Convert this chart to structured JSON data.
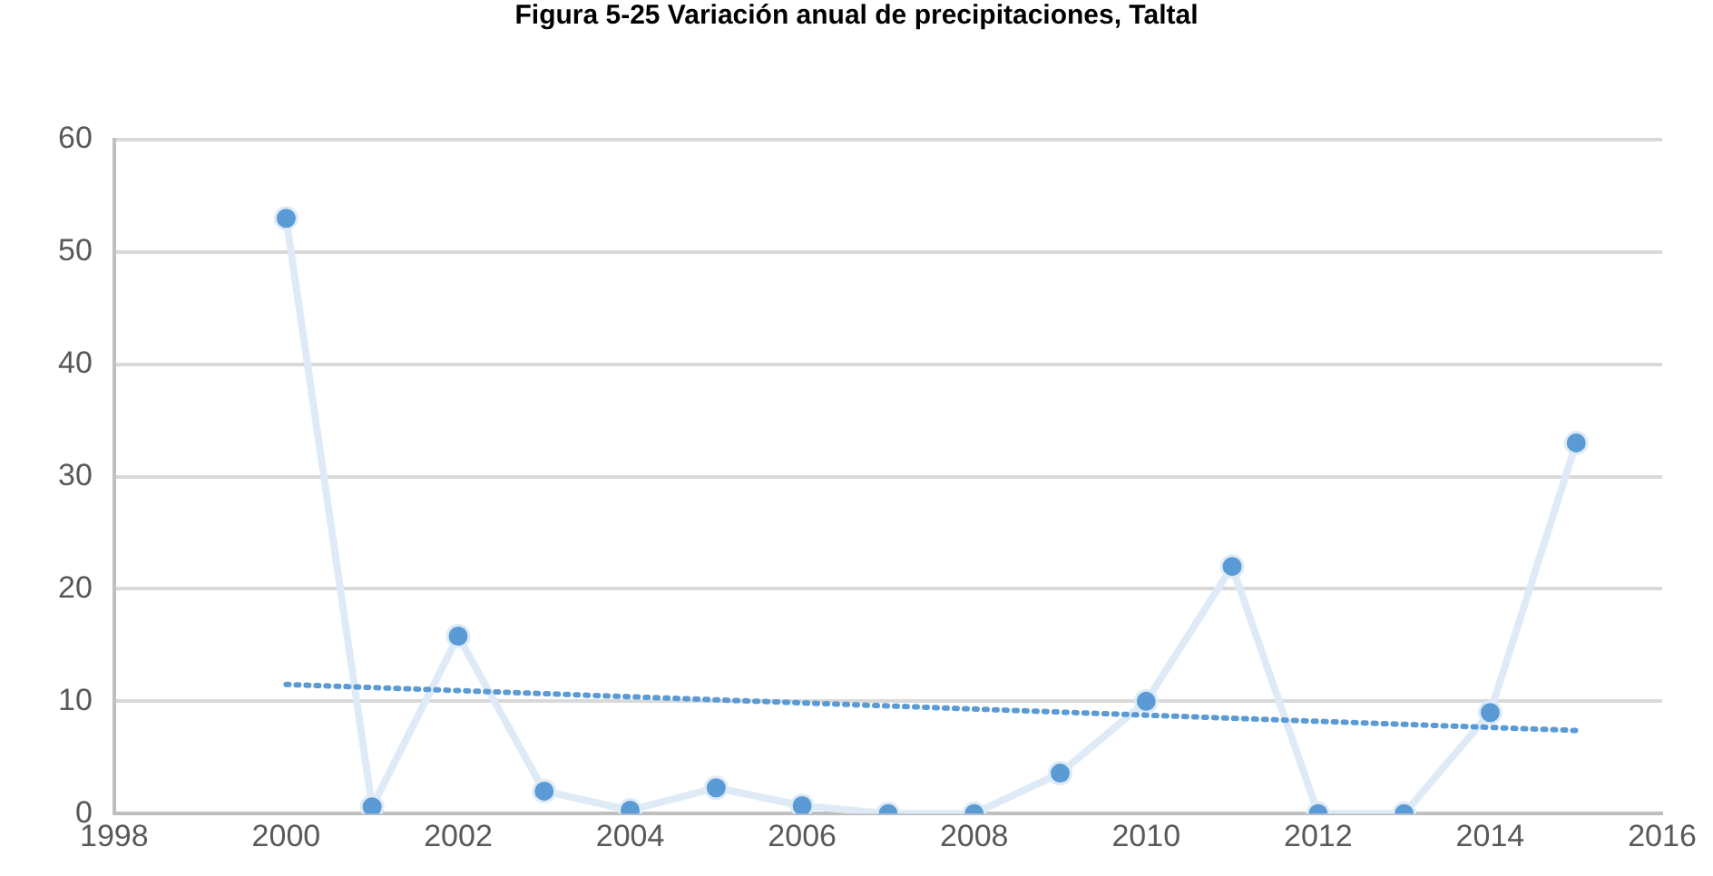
{
  "chart_data": {
    "type": "line",
    "title": "Figura 5-25 Variación anual de precipitaciones, Taltal",
    "x": [
      2000,
      2001,
      2002,
      2003,
      2004,
      2005,
      2006,
      2007,
      2008,
      2009,
      2010,
      2011,
      2012,
      2013,
      2014,
      2015
    ],
    "series": [
      {
        "color": "#5b9bd5",
        "values": [
          53,
          0.6,
          15.8,
          2,
          0.3,
          2.3,
          0.7,
          0,
          0,
          3.6,
          10,
          22,
          0,
          0,
          9,
          33
        ]
      },
      {
        "type": "line",
        "color": "#5b9bd5",
        "x": [
          2000,
          2015
        ],
        "values": [
          11.5,
          7.4
        ],
        "marker": "none",
        "line_style": "dotted"
      }
    ],
    "xlim": [
      1998,
      2016
    ],
    "xticks": [
      1998,
      2000,
      2002,
      2004,
      2006,
      2008,
      2010,
      2012,
      2014,
      2016
    ],
    "ylim": [
      0,
      60
    ],
    "yticks": [
      0,
      10,
      20,
      30,
      40,
      50,
      60
    ],
    "grid": "y",
    "legend": false,
    "marker": "circle"
  }
}
